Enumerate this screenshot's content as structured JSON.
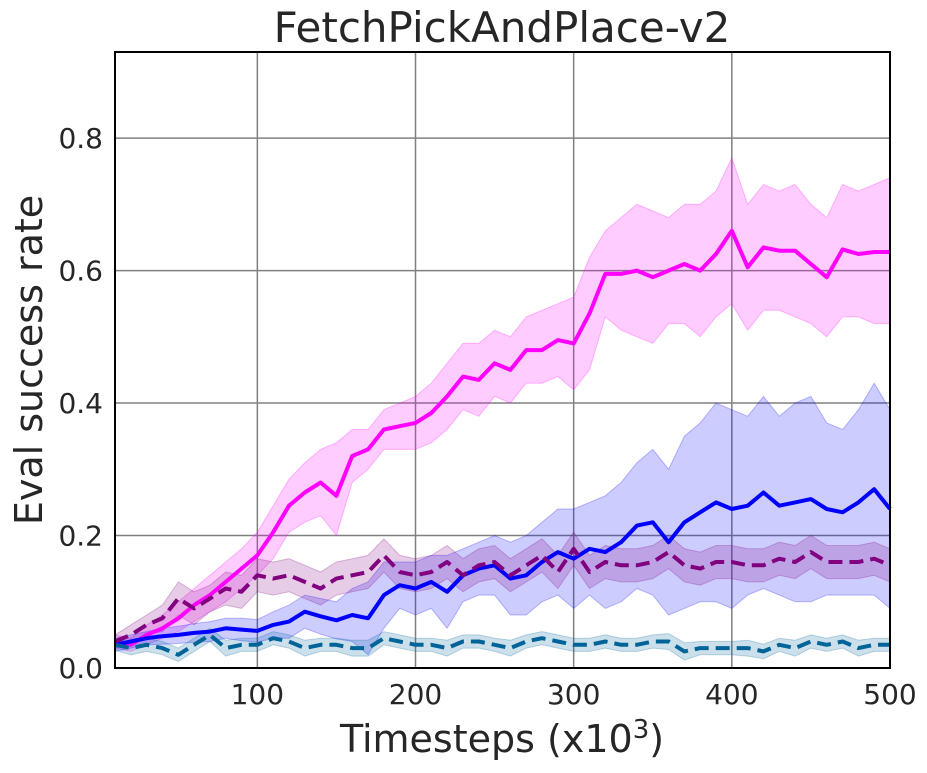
{
  "chart_data": {
    "type": "line",
    "title": "FetchPickAndPlace-v2",
    "xlabel": "Timesteps (x10",
    "xlabel_sup": "3",
    "xlabel_end": ")",
    "ylabel": "Eval success rate",
    "xlim": [
      10,
      500
    ],
    "ylim": [
      0,
      0.93
    ],
    "xticks": [
      100,
      200,
      300,
      400,
      500
    ],
    "yticks": [
      0.0,
      0.2,
      0.4,
      0.6,
      0.8
    ],
    "ytick_labels": [
      "0.0",
      "0.2",
      "0.4",
      "0.6",
      "0.8"
    ],
    "grid": true,
    "x": [
      10,
      20,
      30,
      40,
      50,
      60,
      70,
      80,
      90,
      100,
      110,
      120,
      130,
      140,
      150,
      160,
      170,
      180,
      190,
      200,
      210,
      220,
      230,
      240,
      250,
      260,
      270,
      280,
      290,
      300,
      310,
      320,
      330,
      340,
      350,
      360,
      370,
      380,
      390,
      400,
      410,
      420,
      430,
      440,
      450,
      460,
      470,
      480,
      490,
      500
    ],
    "series": [
      {
        "color": "#ff00ff",
        "dash": "solid",
        "values": [
          0.04,
          0.035,
          0.05,
          0.06,
          0.075,
          0.095,
          0.11,
          0.13,
          0.15,
          0.17,
          0.205,
          0.245,
          0.265,
          0.28,
          0.26,
          0.32,
          0.33,
          0.36,
          0.365,
          0.37,
          0.385,
          0.41,
          0.44,
          0.435,
          0.46,
          0.45,
          0.48,
          0.48,
          0.495,
          0.49,
          0.535,
          0.595,
          0.595,
          0.6,
          0.59,
          0.6,
          0.61,
          0.6,
          0.625,
          0.66,
          0.605,
          0.635,
          0.63,
          0.63,
          0.61,
          0.59,
          0.632,
          0.625,
          0.628,
          0.628
        ],
        "upper": [
          0.05,
          0.045,
          0.065,
          0.08,
          0.1,
          0.12,
          0.14,
          0.16,
          0.18,
          0.205,
          0.245,
          0.285,
          0.31,
          0.33,
          0.34,
          0.36,
          0.36,
          0.39,
          0.4,
          0.41,
          0.43,
          0.46,
          0.49,
          0.49,
          0.51,
          0.5,
          0.53,
          0.54,
          0.55,
          0.56,
          0.62,
          0.66,
          0.68,
          0.7,
          0.69,
          0.68,
          0.7,
          0.7,
          0.72,
          0.77,
          0.7,
          0.73,
          0.72,
          0.73,
          0.7,
          0.68,
          0.73,
          0.72,
          0.73,
          0.74
        ],
        "lower": [
          0.03,
          0.025,
          0.035,
          0.045,
          0.055,
          0.07,
          0.085,
          0.1,
          0.12,
          0.14,
          0.165,
          0.205,
          0.22,
          0.23,
          0.2,
          0.28,
          0.3,
          0.33,
          0.33,
          0.33,
          0.34,
          0.36,
          0.39,
          0.38,
          0.41,
          0.4,
          0.43,
          0.43,
          0.44,
          0.42,
          0.45,
          0.53,
          0.51,
          0.5,
          0.49,
          0.52,
          0.52,
          0.5,
          0.53,
          0.55,
          0.51,
          0.54,
          0.54,
          0.53,
          0.52,
          0.5,
          0.53,
          0.53,
          0.52,
          0.52
        ]
      },
      {
        "color": "#0000ff",
        "dash": "solid",
        "values": [
          0.035,
          0.04,
          0.045,
          0.048,
          0.05,
          0.053,
          0.055,
          0.06,
          0.058,
          0.056,
          0.065,
          0.07,
          0.085,
          0.078,
          0.072,
          0.08,
          0.075,
          0.11,
          0.125,
          0.12,
          0.13,
          0.115,
          0.14,
          0.15,
          0.155,
          0.135,
          0.14,
          0.16,
          0.175,
          0.165,
          0.18,
          0.175,
          0.19,
          0.215,
          0.22,
          0.19,
          0.22,
          0.235,
          0.25,
          0.24,
          0.245,
          0.265,
          0.245,
          0.25,
          0.255,
          0.24,
          0.235,
          0.25,
          0.27,
          0.24
        ],
        "upper": [
          0.045,
          0.05,
          0.055,
          0.06,
          0.063,
          0.067,
          0.07,
          0.075,
          0.075,
          0.073,
          0.085,
          0.095,
          0.11,
          0.105,
          0.1,
          0.12,
          0.13,
          0.16,
          0.16,
          0.16,
          0.17,
          0.17,
          0.18,
          0.19,
          0.2,
          0.19,
          0.2,
          0.22,
          0.24,
          0.24,
          0.25,
          0.26,
          0.28,
          0.31,
          0.33,
          0.3,
          0.35,
          0.37,
          0.4,
          0.39,
          0.38,
          0.41,
          0.38,
          0.4,
          0.41,
          0.37,
          0.36,
          0.39,
          0.43,
          0.39
        ],
        "lower": [
          0.025,
          0.03,
          0.035,
          0.036,
          0.037,
          0.039,
          0.04,
          0.045,
          0.041,
          0.039,
          0.045,
          0.045,
          0.06,
          0.051,
          0.044,
          0.04,
          0.02,
          0.06,
          0.09,
          0.08,
          0.09,
          0.06,
          0.1,
          0.11,
          0.11,
          0.08,
          0.08,
          0.1,
          0.11,
          0.09,
          0.11,
          0.09,
          0.1,
          0.12,
          0.11,
          0.08,
          0.09,
          0.1,
          0.1,
          0.09,
          0.11,
          0.12,
          0.11,
          0.1,
          0.1,
          0.11,
          0.11,
          0.11,
          0.11,
          0.09
        ]
      },
      {
        "color": "#800080",
        "dash": "dashed",
        "values": [
          0.04,
          0.05,
          0.065,
          0.075,
          0.105,
          0.09,
          0.105,
          0.12,
          0.115,
          0.14,
          0.135,
          0.14,
          0.13,
          0.12,
          0.135,
          0.14,
          0.145,
          0.17,
          0.145,
          0.14,
          0.145,
          0.16,
          0.14,
          0.155,
          0.16,
          0.14,
          0.155,
          0.17,
          0.145,
          0.18,
          0.145,
          0.16,
          0.155,
          0.155,
          0.16,
          0.175,
          0.155,
          0.15,
          0.16,
          0.16,
          0.155,
          0.155,
          0.165,
          0.16,
          0.175,
          0.16,
          0.16,
          0.16,
          0.165,
          0.155
        ],
        "upper": [
          0.05,
          0.065,
          0.08,
          0.095,
          0.13,
          0.115,
          0.125,
          0.145,
          0.14,
          0.165,
          0.16,
          0.165,
          0.155,
          0.145,
          0.16,
          0.165,
          0.17,
          0.195,
          0.17,
          0.165,
          0.17,
          0.185,
          0.165,
          0.18,
          0.185,
          0.165,
          0.18,
          0.195,
          0.17,
          0.205,
          0.17,
          0.185,
          0.18,
          0.18,
          0.185,
          0.2,
          0.18,
          0.175,
          0.185,
          0.185,
          0.18,
          0.18,
          0.19,
          0.185,
          0.2,
          0.185,
          0.185,
          0.185,
          0.19,
          0.18
        ],
        "lower": [
          0.03,
          0.035,
          0.05,
          0.055,
          0.08,
          0.065,
          0.085,
          0.095,
          0.09,
          0.115,
          0.11,
          0.115,
          0.105,
          0.095,
          0.11,
          0.115,
          0.12,
          0.145,
          0.12,
          0.115,
          0.12,
          0.135,
          0.115,
          0.13,
          0.135,
          0.115,
          0.13,
          0.145,
          0.12,
          0.155,
          0.12,
          0.135,
          0.13,
          0.13,
          0.135,
          0.15,
          0.13,
          0.125,
          0.135,
          0.135,
          0.13,
          0.13,
          0.14,
          0.135,
          0.15,
          0.135,
          0.135,
          0.135,
          0.14,
          0.13
        ]
      },
      {
        "color": "#006499",
        "dash": "dashed",
        "values": [
          0.035,
          0.03,
          0.035,
          0.03,
          0.02,
          0.035,
          0.05,
          0.03,
          0.035,
          0.035,
          0.045,
          0.04,
          0.03,
          0.035,
          0.035,
          0.03,
          0.03,
          0.045,
          0.04,
          0.035,
          0.035,
          0.03,
          0.04,
          0.04,
          0.035,
          0.03,
          0.04,
          0.045,
          0.04,
          0.035,
          0.035,
          0.04,
          0.035,
          0.035,
          0.04,
          0.04,
          0.025,
          0.03,
          0.03,
          0.03,
          0.03,
          0.025,
          0.035,
          0.03,
          0.04,
          0.035,
          0.04,
          0.03,
          0.035,
          0.035
        ],
        "upper": [
          0.043,
          0.04,
          0.045,
          0.04,
          0.03,
          0.045,
          0.06,
          0.042,
          0.045,
          0.045,
          0.055,
          0.05,
          0.042,
          0.045,
          0.045,
          0.042,
          0.042,
          0.055,
          0.05,
          0.045,
          0.045,
          0.042,
          0.05,
          0.05,
          0.045,
          0.042,
          0.05,
          0.055,
          0.05,
          0.045,
          0.045,
          0.05,
          0.045,
          0.045,
          0.05,
          0.052,
          0.038,
          0.04,
          0.04,
          0.04,
          0.042,
          0.036,
          0.045,
          0.042,
          0.05,
          0.045,
          0.05,
          0.042,
          0.045,
          0.045
        ],
        "lower": [
          0.027,
          0.02,
          0.025,
          0.02,
          0.01,
          0.025,
          0.04,
          0.018,
          0.025,
          0.025,
          0.035,
          0.03,
          0.018,
          0.025,
          0.025,
          0.018,
          0.018,
          0.035,
          0.03,
          0.025,
          0.025,
          0.018,
          0.03,
          0.03,
          0.025,
          0.018,
          0.03,
          0.035,
          0.03,
          0.025,
          0.025,
          0.03,
          0.025,
          0.025,
          0.03,
          0.028,
          0.012,
          0.02,
          0.02,
          0.02,
          0.018,
          0.014,
          0.025,
          0.018,
          0.03,
          0.025,
          0.03,
          0.018,
          0.025,
          0.025
        ]
      }
    ]
  }
}
